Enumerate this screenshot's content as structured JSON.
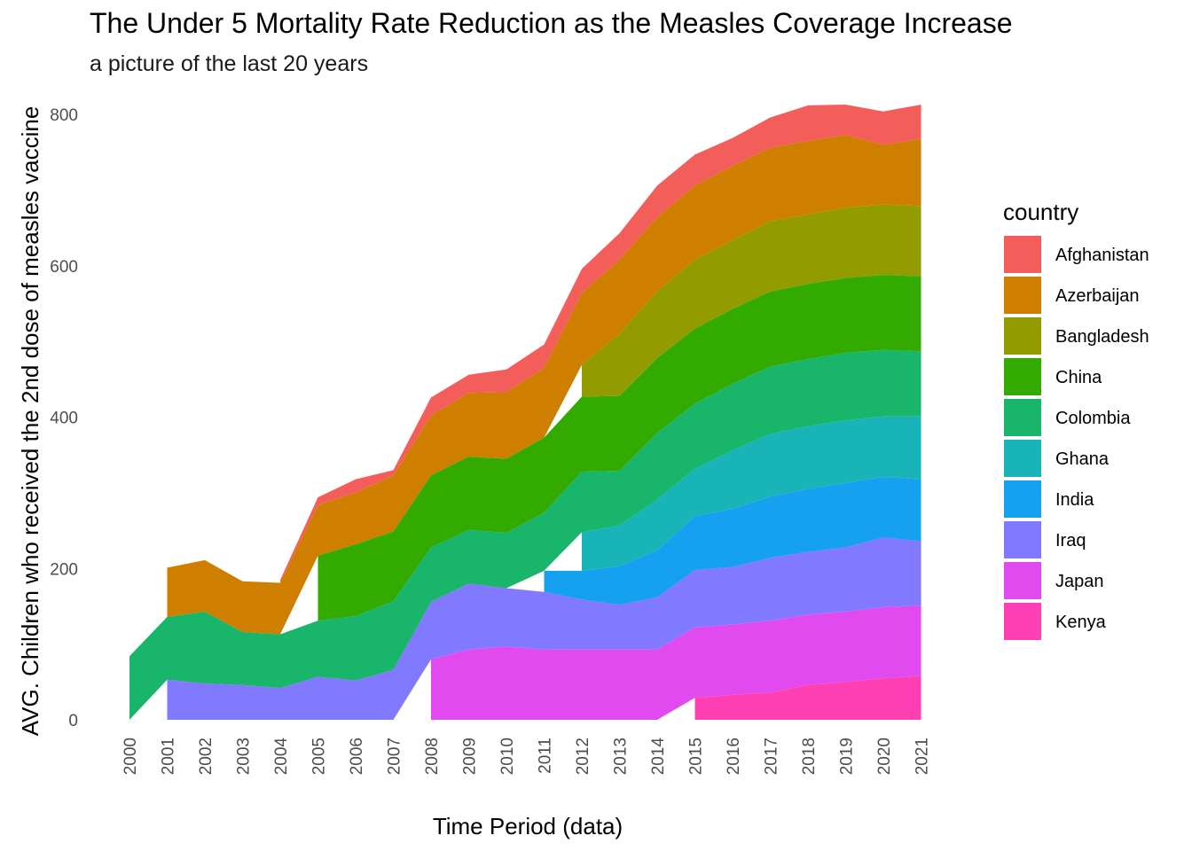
{
  "title": "The Under 5 Mortality Rate Reduction as the Measles Coverage Increase",
  "subtitle": "a picture of the last 20 years",
  "chart_data": {
    "type": "area",
    "stacked": true,
    "xlabel": "Time Period (data)",
    "ylabel": "AVG. Children who received the 2nd dose of measles vaccine",
    "x": [
      "2000",
      "2001",
      "2002",
      "2003",
      "2004",
      "2005",
      "2006",
      "2007",
      "2008",
      "2009",
      "2010",
      "2011",
      "2012",
      "2013",
      "2014",
      "2015",
      "2016",
      "2017",
      "2018",
      "2019",
      "2020",
      "2021"
    ],
    "ylim": [
      0,
      840
    ],
    "y_ticks": [
      0,
      200,
      400,
      600,
      800
    ],
    "grid": false,
    "legend_title": "country",
    "legend_position": "right",
    "series": [
      {
        "name": "Kenya",
        "color": "#FF40B4",
        "values": [
          null,
          null,
          null,
          null,
          null,
          null,
          null,
          null,
          null,
          null,
          null,
          null,
          null,
          null,
          null,
          29,
          33,
          36,
          46,
          50,
          55,
          58
        ]
      },
      {
        "name": "Japan",
        "color": "#E04AEF",
        "values": [
          null,
          null,
          null,
          null,
          null,
          null,
          null,
          null,
          80,
          93,
          97,
          93,
          93,
          93,
          93,
          93,
          93,
          95,
          93,
          93,
          94,
          93
        ]
      },
      {
        "name": "Iraq",
        "color": "#8179FF",
        "values": [
          null,
          53,
          48,
          46,
          42,
          57,
          52,
          66,
          76,
          87,
          77,
          76,
          66,
          59,
          69,
          76,
          76,
          83,
          83,
          85,
          92,
          85
        ]
      },
      {
        "name": "India",
        "color": "#16A0F0",
        "values": [
          null,
          null,
          null,
          null,
          null,
          null,
          null,
          null,
          null,
          null,
          null,
          28,
          38,
          51,
          62,
          71,
          77,
          81,
          83,
          85,
          80,
          82
        ]
      },
      {
        "name": "Ghana",
        "color": "#18B4B8",
        "values": [
          null,
          null,
          null,
          null,
          null,
          null,
          null,
          null,
          null,
          null,
          null,
          null,
          51,
          54,
          67,
          63,
          77,
          83,
          83,
          83,
          80,
          83
        ]
      },
      {
        "name": "Colombia",
        "color": "#19B56B",
        "values": [
          84,
          83,
          95,
          70,
          71,
          74,
          85,
          91,
          72,
          71,
          73,
          77,
          80,
          72,
          88,
          86,
          88,
          89,
          89,
          89,
          88,
          86
        ]
      },
      {
        "name": "China",
        "color": "#33AA00",
        "values": [
          null,
          null,
          null,
          null,
          null,
          86,
          95,
          92,
          95,
          97,
          98,
          99,
          99,
          99,
          99,
          99,
          99,
          99,
          99,
          99,
          99,
          99
        ]
      },
      {
        "name": "Bangladesh",
        "color": "#929B00",
        "values": [
          null,
          null,
          null,
          null,
          null,
          null,
          null,
          null,
          null,
          null,
          null,
          null,
          42,
          82,
          88,
          91,
          91,
          93,
          92,
          93,
          93,
          93
        ]
      },
      {
        "name": "Azerbaijan",
        "color": "#CF7F00",
        "values": [
          null,
          65,
          68,
          67,
          68,
          67,
          68,
          74,
          79,
          84,
          88,
          92,
          95,
          98,
          98,
          98,
          98,
          97,
          97,
          96,
          79,
          89
        ]
      },
      {
        "name": "Afghanistan",
        "color": "#F35E5B",
        "values": [
          null,
          null,
          null,
          null,
          4,
          10,
          18,
          7,
          24,
          24,
          30,
          31,
          32,
          35,
          42,
          41,
          37,
          40,
          47,
          40,
          44,
          45
        ]
      }
    ]
  }
}
